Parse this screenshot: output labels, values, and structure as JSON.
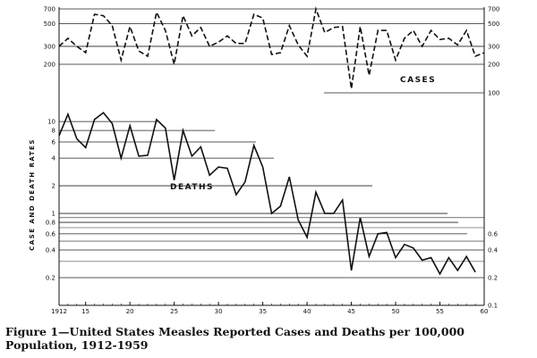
{
  "caption": "Figure 1—United States Measles Reported Cases and Deaths per 100,000 Population, 1912-1959",
  "chart_data": {
    "type": "line",
    "y_label": "CASE AND DEATH RATES",
    "x_ticks": [
      {
        "year": 1912,
        "label": "1912"
      },
      {
        "year": 1915,
        "label": "15"
      },
      {
        "year": 1920,
        "label": "20"
      },
      {
        "year": 1925,
        "label": "25"
      },
      {
        "year": 1930,
        "label": "30"
      },
      {
        "year": 1935,
        "label": "35"
      },
      {
        "year": 1940,
        "label": "40"
      },
      {
        "year": 1945,
        "label": "45"
      },
      {
        "year": 1950,
        "label": "50"
      },
      {
        "year": 1955,
        "label": "55"
      },
      {
        "year": 1960,
        "label": "60"
      }
    ],
    "x_range": [
      1912,
      1960
    ],
    "cases_axis": {
      "scale": "log",
      "range": [
        200,
        700
      ],
      "ticks": [
        200,
        300,
        500,
        700
      ],
      "right_ticks": [
        100,
        200,
        300,
        500,
        700
      ]
    },
    "deaths_axis": {
      "scale": "log",
      "range": [
        0.1,
        15
      ],
      "ticks": [
        0.2,
        0.4,
        0.6,
        0.8,
        1,
        2,
        4,
        6,
        8,
        10
      ],
      "right_ticks": [
        0.1,
        0.2,
        0.4,
        0.6
      ]
    },
    "series": [
      {
        "name": "CASES",
        "style": "dashed",
        "x": [
          1912,
          1913,
          1914,
          1915,
          1916,
          1917,
          1918,
          1919,
          1920,
          1921,
          1922,
          1923,
          1924,
          1925,
          1926,
          1927,
          1928,
          1929,
          1930,
          1931,
          1932,
          1933,
          1934,
          1935,
          1936,
          1937,
          1938,
          1939,
          1940,
          1941,
          1942,
          1943,
          1944,
          1945,
          1946,
          1947,
          1948,
          1949,
          1950,
          1951,
          1952,
          1953,
          1954,
          1955,
          1956,
          1957,
          1958,
          1959,
          1960
        ],
        "values": [
          300,
          360,
          300,
          260,
          620,
          600,
          480,
          220,
          470,
          270,
          240,
          650,
          430,
          200,
          600,
          380,
          460,
          300,
          330,
          380,
          320,
          320,
          620,
          570,
          250,
          260,
          480,
          310,
          240,
          700,
          410,
          460,
          470,
          110,
          470,
          150,
          430,
          430,
          220,
          360,
          430,
          300,
          430,
          350,
          360,
          310,
          430,
          240,
          260
        ]
      },
      {
        "name": "DEATHS",
        "style": "solid",
        "x": [
          1912,
          1913,
          1914,
          1915,
          1916,
          1917,
          1918,
          1919,
          1920,
          1921,
          1922,
          1923,
          1924,
          1925,
          1926,
          1927,
          1928,
          1929,
          1930,
          1931,
          1932,
          1933,
          1934,
          1935,
          1936,
          1937,
          1938,
          1939,
          1940,
          1941,
          1942,
          1943,
          1944,
          1945,
          1946,
          1947,
          1948,
          1949,
          1950,
          1951,
          1952,
          1953,
          1954,
          1955,
          1956,
          1957,
          1958,
          1959
        ],
        "values": [
          7,
          12,
          6.5,
          5.2,
          10.5,
          12.5,
          9.5,
          4,
          9,
          4.2,
          4.3,
          10.5,
          8.5,
          2.3,
          8,
          4.2,
          5.3,
          2.6,
          3.2,
          3.1,
          1.6,
          2.2,
          5.5,
          3.2,
          1,
          1.2,
          2.5,
          0.85,
          0.55,
          1.7,
          1,
          1,
          1.4,
          0.24,
          0.9,
          0.34,
          0.6,
          0.62,
          0.33,
          0.46,
          0.42,
          0.31,
          0.33,
          0.22,
          0.33,
          0.24,
          0.34,
          0.23
        ]
      }
    ],
    "grid": true
  }
}
